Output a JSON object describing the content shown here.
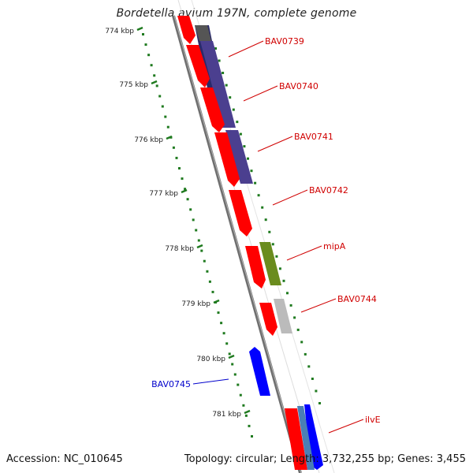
{
  "header": {
    "title": "Bordetella avium 197N, complete genome"
  },
  "footer": {
    "accession": "Accession: NC_010645",
    "summary": "Topology: circular; Length: 3,732,255 bp; Genes: 3,455"
  },
  "colors": {
    "backbone": "#8c8c8c",
    "tick": "#1f7a1f",
    "label_red": "#d00000",
    "label_blue": "#0000cc",
    "gene_red": "#ff0000",
    "gene_purple": "#4b3f8f",
    "gene_green": "#6a8c1e",
    "gene_grey": "#bbbbbb",
    "gene_blue": "#0000ff",
    "gene_darkgrey": "#555555",
    "gene_steel": "#4a7fb5"
  },
  "ticks": {
    "labels": [
      "774 kbp",
      "775 kbp",
      "776 kbp",
      "777 kbp",
      "778 kbp",
      "779 kbp",
      "780 kbp",
      "781 kbp"
    ]
  },
  "genes": {
    "labels": [
      {
        "text": "BAV0739",
        "color": "red"
      },
      {
        "text": "BAV0740",
        "color": "red"
      },
      {
        "text": "BAV0741",
        "color": "red"
      },
      {
        "text": "BAV0742",
        "color": "red"
      },
      {
        "text": "mipA",
        "color": "red"
      },
      {
        "text": "BAV0744",
        "color": "red"
      },
      {
        "text": "BAV0745",
        "color": "blue"
      },
      {
        "text": "ilvE",
        "color": "red"
      }
    ]
  }
}
